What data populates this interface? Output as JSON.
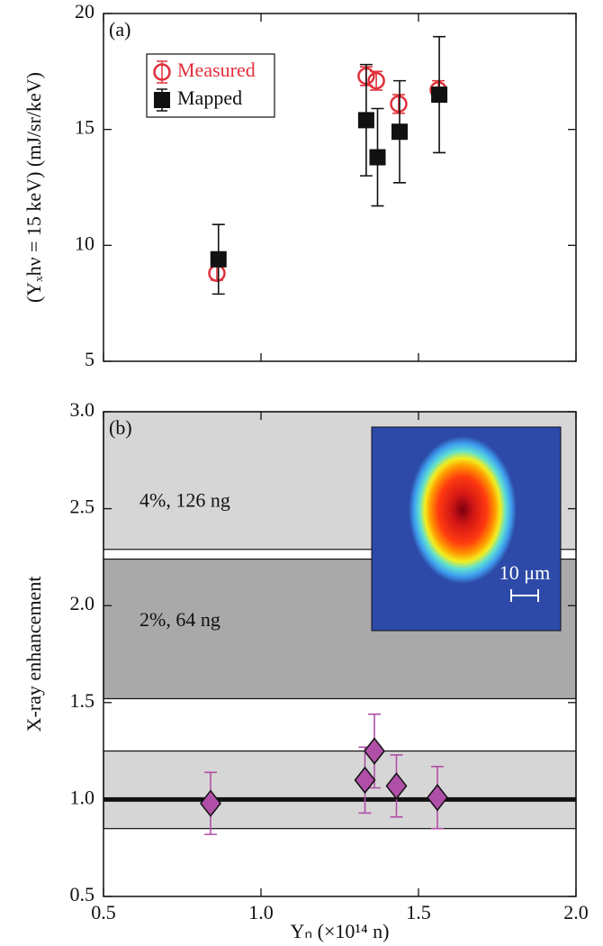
{
  "chart_data": [
    {
      "type": "scatter",
      "panel_label": "(a)",
      "ylabel": "(Yₓhν = 15 keV) (mJ/sr/keV)",
      "xlim": [
        0.5,
        2.0
      ],
      "ylim": [
        5,
        20
      ],
      "yticks": [
        5,
        10,
        15,
        20
      ],
      "legend": "upper left",
      "series": [
        {
          "name": "Measured",
          "color": "#e0303a",
          "marker": "circle-open",
          "x": [
            0.86,
            1.334,
            1.366,
            1.437,
            1.563
          ],
          "values": [
            8.8,
            17.3,
            17.1,
            16.1,
            16.7
          ],
          "errors": [
            0.3,
            0.4,
            0.4,
            0.4,
            0.4
          ]
        },
        {
          "name": "Mapped",
          "color": "#111111",
          "marker": "square",
          "x": [
            0.865,
            1.334,
            1.37,
            1.44,
            1.566
          ],
          "values": [
            9.4,
            15.4,
            13.8,
            14.9,
            16.5
          ],
          "errors": [
            1.5,
            2.4,
            2.1,
            2.2,
            2.5
          ]
        }
      ]
    },
    {
      "type": "scatter",
      "panel_label": "(b)",
      "ylabel": "X-ray enhancement",
      "xlabel": "Yₙ (×10¹⁴ n)",
      "xlim": [
        0.5,
        2.0
      ],
      "ylim": [
        0.5,
        3.0
      ],
      "xticks": [
        0.5,
        {
          "value": 1,
          "label": "1.0"
        },
        1.5,
        {
          "value": 2,
          "label": "2.0"
        }
      ],
      "yticks": [
        0.5,
        {
          "value": 1,
          "label": "1.0"
        },
        1.5,
        {
          "value": 2,
          "label": "2.0"
        },
        2.5,
        {
          "value": 3,
          "label": "3.0"
        }
      ],
      "bands": [
        {
          "label": "4%, 126 ng",
          "range": [
            2.29,
            3.0
          ],
          "color": "#d6d6d6"
        },
        {
          "label": "2%, 64 ng",
          "range": [
            1.52,
            2.24
          ],
          "color": "#a9a9a9"
        },
        {
          "range": [
            0.85,
            1.25
          ],
          "color": "#d6d6d6"
        }
      ],
      "reference_line": 1,
      "inset_scale_label": "10 μm",
      "series": [
        {
          "color": "#b04fa8",
          "marker": "diamond",
          "x": [
            0.84,
            1.33,
            1.36,
            1.43,
            1.56
          ],
          "values": [
            0.98,
            1.1,
            1.25,
            1.07,
            1.01
          ],
          "errors": [
            0.16,
            0.17,
            0.19,
            0.16,
            0.16
          ]
        }
      ]
    }
  ]
}
